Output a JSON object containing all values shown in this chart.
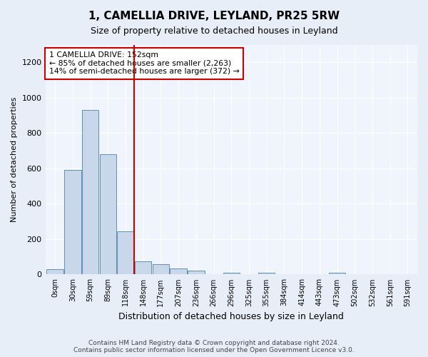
{
  "title": "1, CAMELLIA DRIVE, LEYLAND, PR25 5RW",
  "subtitle": "Size of property relative to detached houses in Leyland",
  "xlabel": "Distribution of detached houses by size in Leyland",
  "ylabel": "Number of detached properties",
  "bin_labels": [
    "0sqm",
    "30sqm",
    "59sqm",
    "89sqm",
    "118sqm",
    "148sqm",
    "177sqm",
    "207sqm",
    "236sqm",
    "266sqm",
    "296sqm",
    "325sqm",
    "355sqm",
    "384sqm",
    "414sqm",
    "443sqm",
    "473sqm",
    "502sqm",
    "532sqm",
    "561sqm",
    "591sqm"
  ],
  "bar_heights": [
    30,
    590,
    930,
    680,
    245,
    75,
    60,
    35,
    20,
    0,
    10,
    0,
    10,
    0,
    0,
    0,
    10,
    0,
    0,
    0,
    0
  ],
  "bar_color": "#c8d8ea",
  "bar_edge_color": "#6090b0",
  "vline_x": 5,
  "vline_color": "#cc0000",
  "annotation_text": "1 CAMELLIA DRIVE: 152sqm\n← 85% of detached houses are smaller (2,263)\n14% of semi-detached houses are larger (372) →",
  "annotation_box_color": "#cc0000",
  "ylim": [
    0,
    1300
  ],
  "yticks": [
    0,
    200,
    400,
    600,
    800,
    1000,
    1200
  ],
  "footer": "Contains HM Land Registry data © Crown copyright and database right 2024.\nContains public sector information licensed under the Open Government Licence v3.0.",
  "bg_color": "#e8eef8",
  "plot_bg_color": "#f0f4fc"
}
